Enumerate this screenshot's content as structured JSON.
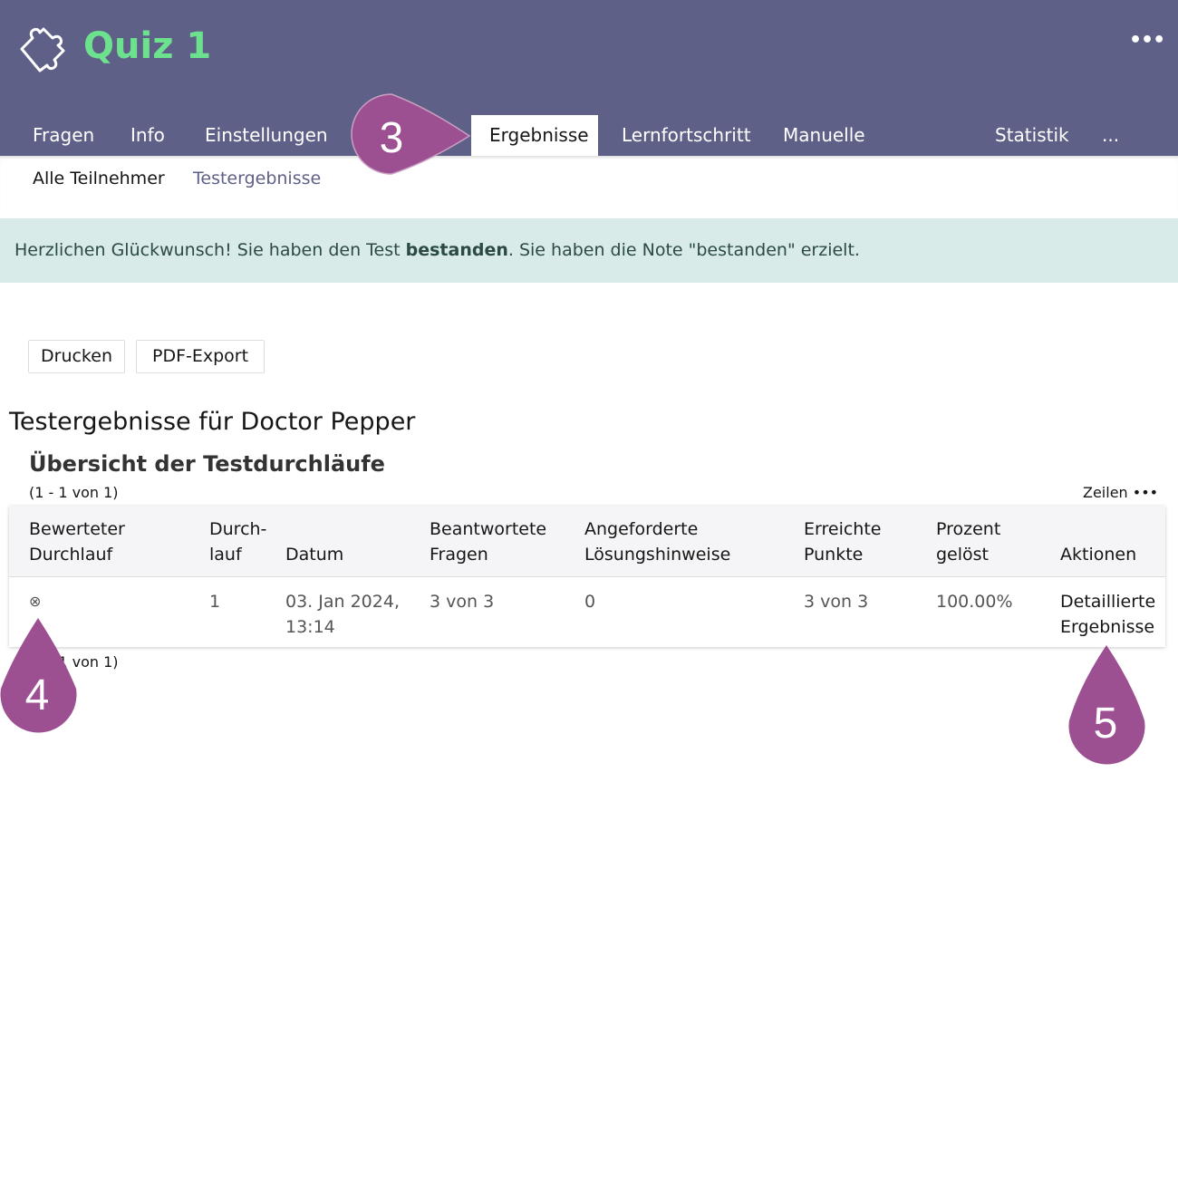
{
  "header": {
    "title": "Quiz 1",
    "logo_icon": "puzzle-icon",
    "more_label": "•••"
  },
  "tabs": [
    {
      "label": "Fragen"
    },
    {
      "label": "Info"
    },
    {
      "label": "Einstellungen"
    },
    {
      "label": "Ergebnisse",
      "active": true
    },
    {
      "label": "Lernfortschritt"
    },
    {
      "label": "Manuelle Bewertung"
    },
    {
      "label": "Statistik"
    },
    {
      "label": "..."
    }
  ],
  "subtabs": [
    {
      "label": "Alle Teilnehmer"
    },
    {
      "label": "Testergebnisse",
      "active": true
    }
  ],
  "alert": {
    "pre": "Herzlichen Glückwunsch! Sie haben den Test ",
    "bold": "bestanden",
    "post": ". Sie haben die Note \"bestanden\" erzielt."
  },
  "buttons": {
    "print": "Drucken",
    "pdf": "PDF-Export"
  },
  "heading": "Testergebnisse für Doctor Pepper",
  "subheading": "Übersicht der Testdurchläufe",
  "pagination": "(1 - 1 von 1)",
  "rows_label": "Zeilen •••",
  "table": {
    "headers": [
      [
        "Bewerteter",
        "Durchlauf"
      ],
      [
        "Durch-",
        "lauf"
      ],
      [
        "",
        "Datum"
      ],
      [
        "Beantwortete",
        "Fragen"
      ],
      [
        "Angeforderte",
        "Lösungshinweise"
      ],
      [
        "Erreichte",
        "Punkte"
      ],
      [
        "Prozent",
        "gelöst"
      ],
      [
        "",
        "Aktionen"
      ]
    ],
    "rows": [
      {
        "icon": "⊗",
        "run": "1",
        "date": [
          "03. Jan 2024,",
          "13:14"
        ],
        "answered": "3 von 3",
        "hints": "0",
        "points": "3 von 3",
        "percent": "100.00%",
        "action": [
          "Detaillierte",
          "Ergebnisse"
        ]
      }
    ]
  },
  "annotations": [
    "3",
    "4",
    "5"
  ],
  "colors": {
    "header": "#5f6087",
    "title": "#6de28e",
    "annotation": "#9c4f91",
    "alert_bg": "#d8ebe8",
    "subtab_active": "#5f6087"
  }
}
